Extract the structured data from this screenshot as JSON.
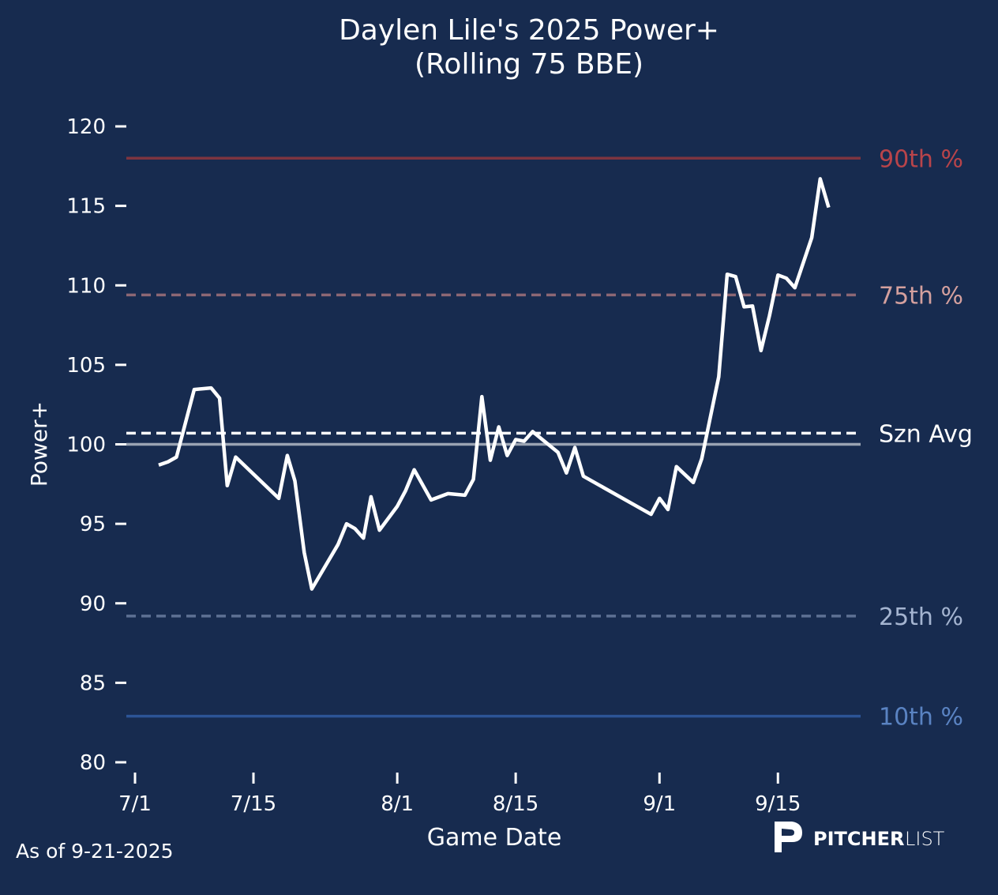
{
  "chart_data": {
    "type": "line",
    "title_line1": "Daylen Lile's 2025 Power+",
    "title_line2": "(Rolling 75 BBE)",
    "xlabel": "Game Date",
    "ylabel": "Power+",
    "ylim": [
      80,
      120
    ],
    "yticks": [
      120,
      115,
      110,
      105,
      100,
      95,
      90,
      85,
      80
    ],
    "xlim_days_since_7_1": [
      -1,
      86
    ],
    "xticks": [
      {
        "label": "7/1",
        "day": 0
      },
      {
        "label": "7/15",
        "day": 14
      },
      {
        "label": "8/1",
        "day": 31
      },
      {
        "label": "8/15",
        "day": 45
      },
      {
        "label": "9/1",
        "day": 62
      },
      {
        "label": "9/15",
        "day": 76
      }
    ],
    "grid": false,
    "series": [
      {
        "name": "Power+",
        "color": "#ffffff",
        "x_days_since_7_1": [
          2.8,
          3.9,
          4.9,
          7,
          9,
          10,
          10.9,
          11.9,
          17,
          18,
          18.9,
          20,
          20.9,
          24,
          25,
          26,
          27,
          27.9,
          28.9,
          31,
          32,
          33,
          35,
          37,
          39,
          40,
          41,
          42,
          43,
          44,
          45,
          46,
          47,
          50,
          51,
          52,
          53,
          61,
          62,
          63,
          64,
          66,
          67,
          69,
          70,
          71,
          72,
          73,
          74,
          75,
          76,
          77,
          78,
          80,
          81,
          82
        ],
        "values": [
          98.7,
          98.9,
          99.2,
          103.45,
          103.55,
          102.9,
          97.4,
          99.2,
          96.6,
          99.3,
          97.7,
          93.2,
          90.9,
          93.7,
          95.0,
          94.7,
          94.1,
          96.7,
          94.6,
          96.1,
          97.1,
          98.4,
          96.5,
          96.9,
          96.8,
          97.8,
          103.0,
          99.0,
          101.1,
          99.3,
          100.3,
          100.2,
          100.8,
          99.5,
          98.2,
          99.8,
          98.0,
          95.6,
          96.6,
          95.9,
          98.6,
          97.6,
          99.1,
          104.25,
          110.7,
          110.55,
          108.65,
          108.7,
          105.9,
          108.1,
          110.65,
          110.45,
          109.85,
          113.0,
          116.7,
          114.9
        ]
      }
    ],
    "reference_lines": [
      {
        "label": "90th %",
        "value": 118.0,
        "color": "#7d3440",
        "label_color": "#b8444a",
        "dashed": false
      },
      {
        "label": "75th %",
        "value": 109.4,
        "color": "#8c6774",
        "label_color": "#d4a09e",
        "dashed": true
      },
      {
        "label": "Szn Avg",
        "value": 100.7,
        "color": "#ffffff",
        "label_color": "#ffffff",
        "dashed": true
      },
      {
        "label": "",
        "value": 100.0,
        "color": "#9aa3b2",
        "label_color": "#9aa3b2",
        "dashed": false
      },
      {
        "label": "25th %",
        "value": 89.2,
        "color": "#5d7093",
        "label_color": "#a4b4d0",
        "dashed": true
      },
      {
        "label": "10th %",
        "value": 82.9,
        "color": "#2c5496",
        "label_color": "#5a83c2",
        "dashed": false
      }
    ]
  },
  "footer": {
    "as_of": "As of 9-21-2025",
    "brand_bold": "PITCHER",
    "brand_light": "LIST"
  }
}
